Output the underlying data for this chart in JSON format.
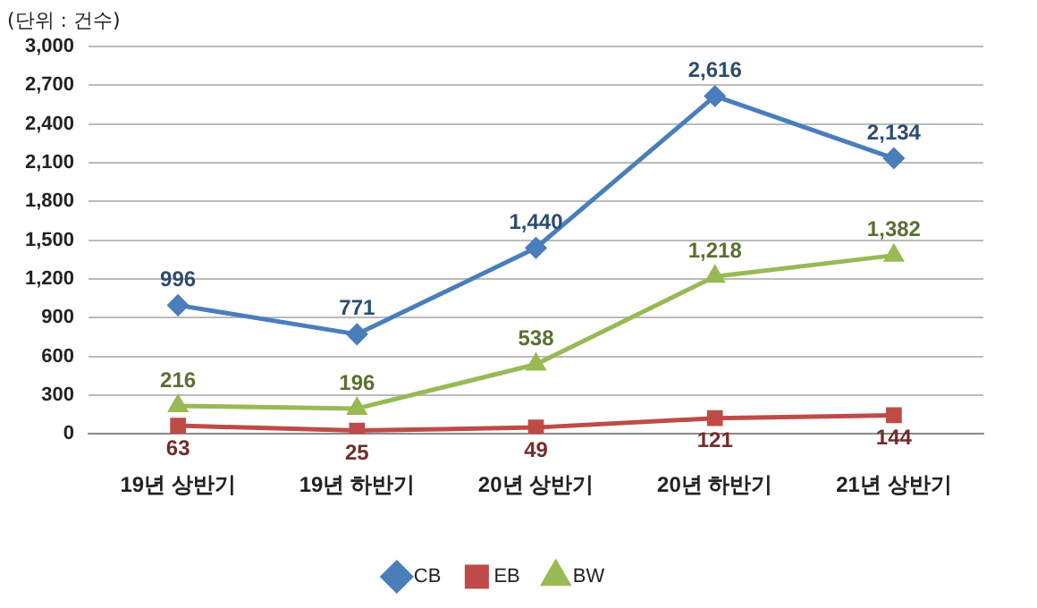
{
  "chart_data": {
    "type": "line",
    "ylabel": "(단위 : 건수)",
    "categories": [
      "19년 상반기",
      "19년 하반기",
      "20년 상반기",
      "20년 하반기",
      "21년 상반기"
    ],
    "series": [
      {
        "name": "CB",
        "color": "#4a7ebb",
        "marker": "diamond",
        "values": [
          996,
          771,
          1440,
          2616,
          2134
        ],
        "value_labels": [
          "996",
          "771",
          "1,440",
          "2,616",
          "2,134"
        ]
      },
      {
        "name": "EB",
        "color": "#be4b48",
        "marker": "square",
        "values": [
          63,
          25,
          49,
          121,
          144
        ],
        "value_labels": [
          "63",
          "25",
          "49",
          "121",
          "144"
        ]
      },
      {
        "name": "BW",
        "color": "#98b954",
        "marker": "triangle",
        "values": [
          216,
          196,
          538,
          1218,
          1382
        ],
        "value_labels": [
          "216",
          "196",
          "538",
          "1,218",
          "1,382"
        ]
      }
    ],
    "ylim": [
      0,
      3000
    ],
    "yticks": [
      0,
      300,
      600,
      900,
      {
        "value": 1200,
        "label": "1,200"
      },
      {
        "value": 1500,
        "label": "1,500"
      },
      {
        "value": 1800,
        "label": "1,800"
      },
      {
        "value": 2100,
        "label": "2,100"
      },
      {
        "value": 2400,
        "label": "2,400"
      },
      {
        "value": 2700,
        "label": "2,700"
      },
      {
        "value": 3000,
        "label": "3,000"
      }
    ],
    "grid": "y",
    "legend": "bottom",
    "line_style": "solid"
  }
}
